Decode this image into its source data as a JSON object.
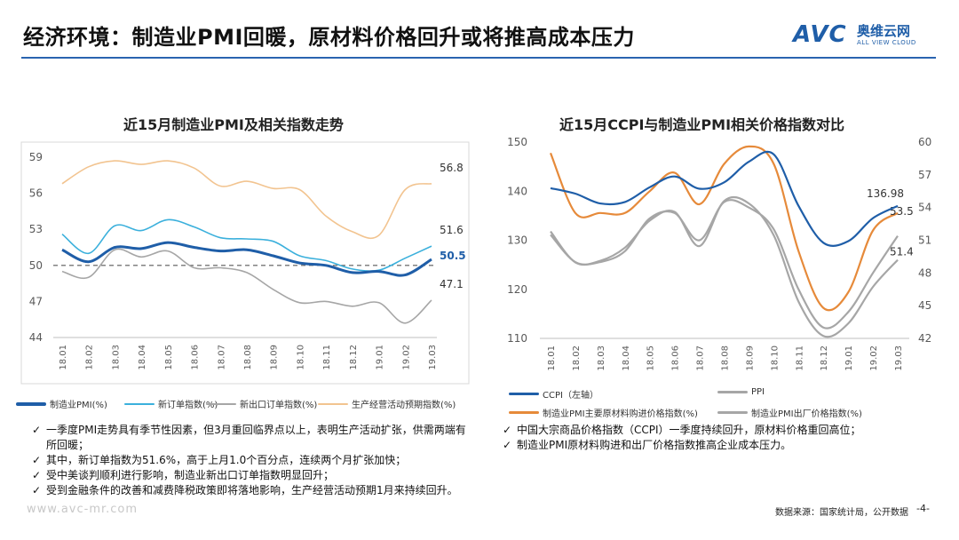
{
  "header": {
    "title": "经济环境：制造业PMI回暖，原材料价格回升或将推高成本压力",
    "logo_text": "AVC",
    "logo_cn": "奥维云网",
    "logo_en": "ALL VIEW CLOUD"
  },
  "chart_data": [
    {
      "type": "line",
      "title": "近15月制造业PMI及相关指数走势",
      "categories": [
        "18.01",
        "18.02",
        "18.03",
        "18.04",
        "18.05",
        "18.06",
        "18.07",
        "18.08",
        "18.09",
        "18.10",
        "18.11",
        "18.12",
        "19.01",
        "19.02",
        "19.03"
      ],
      "ylim": [
        44,
        59
      ],
      "yticks": [
        44,
        47,
        50,
        53,
        56,
        59
      ],
      "reference_line": 50,
      "series": [
        {
          "name": "制造业PMI(%)",
          "color": "#1f5ea8",
          "width": 3,
          "values": [
            51.3,
            50.3,
            51.5,
            51.4,
            51.9,
            51.5,
            51.2,
            51.3,
            50.8,
            50.2,
            50.0,
            49.4,
            49.5,
            49.2,
            50.5
          ],
          "end_label": "50.5",
          "end_label_color": "#1f5ea8"
        },
        {
          "name": "新订单指数(%)",
          "color": "#3bb0dc",
          "width": 1.6,
          "values": [
            52.6,
            51.0,
            53.3,
            52.9,
            53.8,
            53.2,
            52.3,
            52.2,
            52.0,
            50.8,
            50.4,
            49.7,
            49.6,
            50.6,
            51.6
          ],
          "end_label": "51.6",
          "end_label_color": "#333333"
        },
        {
          "name": "新出口订单指数(%)",
          "color": "#a6a6a6",
          "width": 1.6,
          "values": [
            49.5,
            49.0,
            51.3,
            50.7,
            51.2,
            49.8,
            49.8,
            49.4,
            48.0,
            46.9,
            47.0,
            46.6,
            46.9,
            45.2,
            47.1
          ],
          "end_label": "47.1",
          "end_label_color": "#333333"
        },
        {
          "name": "生产经营活动预期指数(%)",
          "color": "#f2c490",
          "width": 1.6,
          "values": [
            56.8,
            58.2,
            58.7,
            58.4,
            58.7,
            58.1,
            56.6,
            57.0,
            56.4,
            56.3,
            54.1,
            52.8,
            52.5,
            56.3,
            56.8
          ],
          "end_label": "56.8",
          "end_label_color": "#333333"
        }
      ]
    },
    {
      "type": "line",
      "title": "近15月CCPI与制造业PMI相关价格指数对比",
      "categories": [
        "18.01",
        "18.02",
        "18.03",
        "18.04",
        "18.05",
        "18.06",
        "18.07",
        "18.08",
        "18.09",
        "18.10",
        "18.11",
        "18.12",
        "19.01",
        "19.02",
        "19.03"
      ],
      "ylim_left": [
        110,
        150
      ],
      "yticks_left": [
        110,
        120,
        130,
        140,
        150
      ],
      "ylim_right": [
        42,
        60
      ],
      "yticks_right": [
        42,
        45,
        48,
        51,
        54,
        57,
        60
      ],
      "series": [
        {
          "name": "CCPI（左轴）",
          "axis": "left",
          "color": "#1f5ea8",
          "width": 2.2,
          "values": [
            140.6,
            139.5,
            137.5,
            137.8,
            140.8,
            143.0,
            140.5,
            141.8,
            146.0,
            147.5,
            137.0,
            129.5,
            129.8,
            134.5,
            136.98
          ],
          "end_label": "136.98"
        },
        {
          "name": "PPI",
          "axis": "left",
          "color": "#a6a6a6",
          "width": 2.2,
          "values": [
            131.8,
            125.5,
            125.8,
            128.5,
            134.0,
            135.8,
            128.8,
            138.0,
            137.5,
            131.0,
            117.5,
            110.5,
            113.0,
            120.5,
            126.0
          ],
          "end_label": ""
        },
        {
          "name": "制造业PMI主要原材料购进价格指数(%)",
          "axis": "right",
          "color": "#e68a3a",
          "width": 2.2,
          "values": [
            59.0,
            53.5,
            53.5,
            53.5,
            55.5,
            57.2,
            54.3,
            58.0,
            59.6,
            58.0,
            50.0,
            44.8,
            46.2,
            51.9,
            53.5
          ],
          "end_label": "53.5"
        },
        {
          "name": "制造业PMI出厂价格指数(%)",
          "axis": "right",
          "color": "#a6a6a6",
          "width": 2.2,
          "values": [
            51.5,
            49.0,
            49.0,
            50.0,
            53.0,
            53.5,
            51.0,
            54.5,
            54.0,
            52.0,
            46.5,
            43.0,
            44.4,
            48.0,
            51.4
          ],
          "end_label": "51.4"
        }
      ]
    }
  ],
  "left_legend": [
    "制造业PMI(%)",
    "新订单指数(%)",
    "新出口订单指数(%)",
    "生产经营活动预期指数(%)"
  ],
  "right_legend": [
    "CCPI（左轴）",
    "PPI",
    "制造业PMI主要原材料购进价格指数(%)",
    "制造业PMI出厂价格指数(%)"
  ],
  "left_notes": [
    "一季度PMI走势具有季节性因素，但3月重回临界点以上，表明生产活动扩张，供需两端有所回暖；",
    "其中，新订单指数为51.6%，高于上月1.0个百分点，连续两个月扩张加快；",
    "受中美谈判顺利进行影响，制造业新出口订单指数明显回升；",
    "受到金融条件的改善和减费降税政策即将落地影响，生产经营活动预期1月来持续回升。"
  ],
  "right_notes": [
    "中国大宗商品价格指数（CCPI）一季度持续回升，原材料价格重回高位；",
    "制造业PMI原材料购进和出厂价格指数推高企业成本压力。"
  ],
  "check_mark": "✓",
  "footer": {
    "source": "数据来源：国家统计局，公开数据",
    "page": "-4-",
    "watermark": "www.avc-mr.com"
  }
}
